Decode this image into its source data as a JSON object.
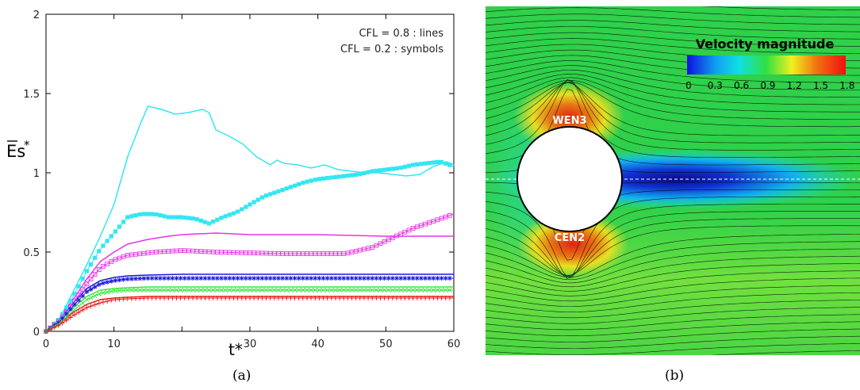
{
  "panel_a": {
    "caption": "(a)",
    "legend_lines": [
      "CFL = 0.8 : lines",
      "CFL = 0.2 : symbols"
    ]
  },
  "panel_b": {
    "caption": "(b)",
    "colorbar_title": "Velocity magnitude",
    "colorbar_ticks": [
      "0",
      "0.3",
      "0.6",
      "0.9",
      "1.2",
      "1.5",
      "1.8"
    ],
    "label_top": "WEN3",
    "label_bottom": "CEN2"
  },
  "colors": {
    "cyan": "#33e6f2",
    "magenta": "#e633e6",
    "blue": "#1a1adb",
    "green": "#3ae63a",
    "red": "#e61a1a"
  },
  "chart_data": {
    "type": "line",
    "xlabel": "t*",
    "ylabel": "Es*",
    "xlim": [
      0,
      60
    ],
    "ylim": [
      0,
      2
    ],
    "xticks": [
      0,
      10,
      20,
      30,
      40,
      50,
      60
    ],
    "yticks": [
      0,
      0.5,
      1,
      1.5,
      2
    ],
    "ytick_labels": [
      "0",
      "0.5",
      "1",
      "1.5",
      "2"
    ],
    "legend_position": "top-right",
    "series": [
      {
        "group": "lines",
        "color": "cyan",
        "x": [
          0,
          2,
          4,
          6,
          8,
          10,
          12,
          14,
          15,
          17,
          19,
          21,
          23,
          24,
          25,
          27,
          29,
          31,
          33,
          34,
          35,
          37,
          39,
          41,
          43,
          45,
          47,
          49,
          51,
          53,
          55,
          57,
          59,
          60
        ],
        "y": [
          0,
          0.08,
          0.25,
          0.42,
          0.6,
          0.8,
          1.1,
          1.32,
          1.42,
          1.4,
          1.37,
          1.38,
          1.4,
          1.38,
          1.27,
          1.23,
          1.18,
          1.1,
          1.05,
          1.08,
          1.06,
          1.05,
          1.03,
          1.05,
          1.02,
          1.01,
          1.0,
          1.0,
          0.99,
          0.98,
          0.99,
          1.04,
          1.07,
          1.05
        ]
      },
      {
        "group": "lines",
        "color": "magenta",
        "x": [
          0,
          2,
          4,
          6,
          8,
          10,
          12,
          15,
          18,
          20,
          25,
          30,
          40,
          50,
          60
        ],
        "y": [
          0,
          0.08,
          0.2,
          0.33,
          0.44,
          0.5,
          0.55,
          0.58,
          0.6,
          0.61,
          0.62,
          0.61,
          0.61,
          0.6,
          0.6
        ]
      },
      {
        "group": "lines",
        "color": "blue",
        "x": [
          0,
          2,
          4,
          6,
          8,
          10,
          12,
          15,
          20,
          30,
          40,
          50,
          60
        ],
        "y": [
          0,
          0.07,
          0.18,
          0.27,
          0.32,
          0.34,
          0.35,
          0.355,
          0.36,
          0.36,
          0.36,
          0.36,
          0.36
        ]
      },
      {
        "group": "lines",
        "color": "green",
        "x": [
          0,
          2,
          4,
          6,
          8,
          10,
          12,
          15,
          20,
          30,
          40,
          50,
          60
        ],
        "y": [
          0,
          0.06,
          0.15,
          0.22,
          0.26,
          0.27,
          0.275,
          0.28,
          0.28,
          0.28,
          0.28,
          0.28,
          0.28
        ]
      },
      {
        "group": "lines",
        "color": "red",
        "x": [
          0,
          2,
          4,
          6,
          8,
          10,
          12,
          15,
          20,
          30,
          40,
          50,
          60
        ],
        "y": [
          0,
          0.05,
          0.12,
          0.17,
          0.2,
          0.21,
          0.215,
          0.22,
          0.22,
          0.22,
          0.22,
          0.22,
          0.22
        ]
      },
      {
        "group": "symbols",
        "color": "cyan",
        "marker": "filled-square",
        "x": [
          0,
          2,
          4,
          6,
          8,
          10,
          12,
          14,
          16,
          18,
          20,
          22,
          24,
          26,
          28,
          30,
          32,
          34,
          36,
          38,
          40,
          42,
          44,
          46,
          48,
          50,
          52,
          54,
          56,
          58,
          60
        ],
        "y": [
          0,
          0.08,
          0.22,
          0.38,
          0.52,
          0.62,
          0.72,
          0.74,
          0.74,
          0.72,
          0.72,
          0.71,
          0.68,
          0.72,
          0.75,
          0.8,
          0.85,
          0.88,
          0.91,
          0.94,
          0.96,
          0.97,
          0.98,
          0.99,
          1.01,
          1.02,
          1.03,
          1.05,
          1.06,
          1.07,
          1.04
        ]
      },
      {
        "group": "symbols",
        "color": "magenta",
        "marker": "open-square",
        "x": [
          0,
          2,
          4,
          6,
          8,
          10,
          12,
          14,
          16,
          18,
          20,
          25,
          30,
          35,
          40,
          44,
          46,
          48,
          50,
          52,
          54,
          56,
          58,
          60
        ],
        "y": [
          0,
          0.07,
          0.18,
          0.3,
          0.4,
          0.45,
          0.48,
          0.49,
          0.5,
          0.505,
          0.51,
          0.5,
          0.495,
          0.49,
          0.49,
          0.49,
          0.51,
          0.53,
          0.57,
          0.61,
          0.65,
          0.68,
          0.71,
          0.74
        ]
      },
      {
        "group": "symbols",
        "color": "blue",
        "marker": "star",
        "x": [
          0,
          2,
          4,
          6,
          8,
          10,
          12,
          15,
          20,
          25,
          30,
          35,
          40,
          45,
          50,
          55,
          60
        ],
        "y": [
          0,
          0.06,
          0.16,
          0.25,
          0.3,
          0.32,
          0.33,
          0.335,
          0.335,
          0.335,
          0.335,
          0.335,
          0.335,
          0.335,
          0.335,
          0.335,
          0.335
        ]
      },
      {
        "group": "symbols",
        "color": "green",
        "marker": "x",
        "x": [
          0,
          2,
          4,
          6,
          8,
          10,
          12,
          15,
          20,
          25,
          30,
          35,
          40,
          45,
          50,
          55,
          60
        ],
        "y": [
          0,
          0.05,
          0.13,
          0.2,
          0.24,
          0.255,
          0.26,
          0.26,
          0.26,
          0.26,
          0.26,
          0.26,
          0.26,
          0.26,
          0.26,
          0.26,
          0.26
        ]
      },
      {
        "group": "symbols",
        "color": "red",
        "marker": "plus",
        "x": [
          0,
          2,
          4,
          6,
          8,
          10,
          12,
          15,
          20,
          25,
          30,
          35,
          40,
          45,
          50,
          55,
          60
        ],
        "y": [
          0,
          0.04,
          0.1,
          0.15,
          0.18,
          0.2,
          0.205,
          0.21,
          0.21,
          0.21,
          0.21,
          0.21,
          0.21,
          0.21,
          0.21,
          0.21,
          0.21
        ]
      }
    ]
  }
}
